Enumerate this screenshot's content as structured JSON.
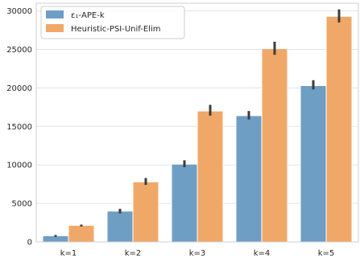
{
  "chart_data": {
    "type": "bar",
    "categories": [
      "k=1",
      "k=2",
      "k=3",
      "k=4",
      "k=5"
    ],
    "series": [
      {
        "name": "ε₁-APE-k",
        "values": [
          800,
          4000,
          10100,
          16400,
          20300
        ],
        "error_low": [
          650,
          3700,
          9700,
          15900,
          19800
        ],
        "error_high": [
          900,
          4300,
          10600,
          17000,
          21000
        ],
        "color": "#6f9ec5"
      },
      {
        "name": "Heuristic-PSI-Unif-Elim",
        "values": [
          2150,
          7800,
          17000,
          25100,
          29300
        ],
        "error_low": [
          2000,
          7400,
          16400,
          24300,
          28500
        ],
        "error_high": [
          2250,
          8300,
          17800,
          26000,
          30200
        ],
        "color": "#f0a868"
      }
    ],
    "y_ticks": [
      "0",
      "5000",
      "10000",
      "15000",
      "20000",
      "25000",
      "30000"
    ],
    "ylim": [
      0,
      31000
    ],
    "grid": "horizontal",
    "legend_position": "top-left"
  }
}
